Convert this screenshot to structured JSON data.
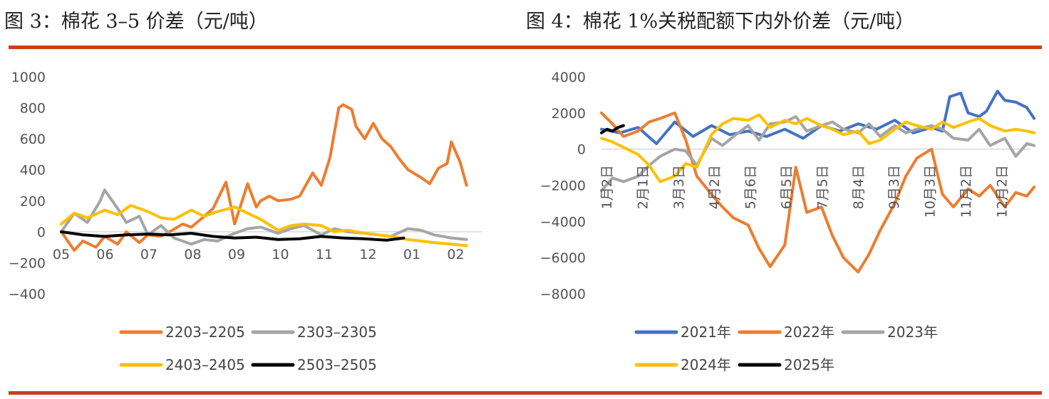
{
  "titles": {
    "chart3": "图 3：棉花 3–5 价差（元/吨）",
    "chart4": "图 4：棉花 1%关税配额下内外价差（元/吨）"
  },
  "chart_data": [
    {
      "type": "line",
      "title": "图 3：棉花 3–5 价差（元/吨）",
      "xlabel": "",
      "ylabel": "",
      "x_ticks": [
        "05",
        "06",
        "07",
        "08",
        "09",
        "10",
        "11",
        "12",
        "01",
        "02"
      ],
      "y_ticks": [
        "1000",
        "800",
        "600",
        "400",
        "200",
        "0",
        "−200",
        "−400"
      ],
      "ylim": [
        -400,
        1000
      ],
      "grid": false,
      "legend_position": "bottom",
      "series": [
        {
          "name": "2203–2205",
          "color": "#ed7d31",
          "x": [
            0,
            0.3,
            0.5,
            0.8,
            1.0,
            1.3,
            1.5,
            1.8,
            2.0,
            2.3,
            2.5,
            2.8,
            3.0,
            3.3,
            3.5,
            3.8,
            4.0,
            4.3,
            4.5,
            4.6,
            4.8,
            5.0,
            5.3,
            5.5,
            5.8,
            6.0,
            6.2,
            6.4,
            6.5,
            6.7,
            6.8,
            7.0,
            7.2,
            7.4,
            7.6,
            7.8,
            8.0,
            8.3,
            8.5,
            8.7,
            8.9,
            9.0,
            9.2,
            9.35
          ],
          "values": [
            0,
            -120,
            -60,
            -100,
            -30,
            -80,
            0,
            -70,
            -20,
            -30,
            0,
            50,
            30,
            100,
            150,
            320,
            50,
            310,
            160,
            200,
            230,
            200,
            210,
            230,
            380,
            300,
            480,
            800,
            820,
            790,
            680,
            600,
            700,
            600,
            550,
            470,
            400,
            350,
            310,
            410,
            440,
            580,
            450,
            300
          ]
        },
        {
          "name": "2303–2305",
          "color": "#a5a5a5",
          "x": [
            0,
            0.3,
            0.6,
            0.9,
            1.0,
            1.3,
            1.5,
            1.8,
            2.0,
            2.3,
            2.6,
            3.0,
            3.3,
            3.6,
            4.0,
            4.3,
            4.6,
            5.0,
            5.3,
            5.6,
            6.0,
            6.3,
            6.6,
            7.0,
            7.3,
            7.6,
            8.0,
            8.3,
            8.6,
            9.0,
            9.35
          ],
          "values": [
            0,
            120,
            60,
            200,
            270,
            150,
            60,
            100,
            -20,
            40,
            -40,
            -80,
            -50,
            -60,
            -10,
            20,
            30,
            -10,
            20,
            40,
            -20,
            20,
            0,
            -10,
            -20,
            -30,
            20,
            10,
            -20,
            -40,
            -50
          ]
        },
        {
          "name": "2403–2405",
          "color": "#ffc000",
          "x": [
            0,
            0.3,
            0.6,
            1.0,
            1.3,
            1.6,
            2.0,
            2.3,
            2.6,
            3.0,
            3.3,
            3.6,
            4.0,
            4.3,
            4.6,
            5.0,
            5.3,
            5.6,
            6.0,
            6.3,
            6.6,
            7.0,
            7.3,
            7.6,
            8.0,
            8.3,
            8.6,
            9.0,
            9.35
          ],
          "values": [
            50,
            120,
            90,
            140,
            110,
            170,
            130,
            90,
            80,
            140,
            100,
            130,
            160,
            120,
            80,
            10,
            40,
            50,
            40,
            0,
            10,
            -10,
            -20,
            -30,
            -50,
            -60,
            -70,
            -80,
            -90
          ]
        },
        {
          "name": "2503–2505",
          "color": "#000000",
          "x": [
            0,
            0.5,
            1.0,
            1.5,
            2.0,
            2.5,
            3.0,
            3.5,
            4.0,
            4.5,
            5.0,
            5.5,
            6.0,
            6.5,
            7.0,
            7.5,
            7.9
          ],
          "values": [
            0,
            -20,
            -30,
            -20,
            -15,
            -20,
            -10,
            -30,
            -40,
            -35,
            -50,
            -45,
            -30,
            -40,
            -45,
            -55,
            -40
          ]
        }
      ]
    },
    {
      "type": "line",
      "title": "图 4：棉花 1%关税配额下内外价差（元/吨）",
      "xlabel": "",
      "ylabel": "",
      "x_ticks": [
        "1月2日",
        "2月1日",
        "3月3日",
        "4月2日",
        "5月6日",
        "6月5日",
        "7月5日",
        "8月4日",
        "9月3日",
        "10月3日",
        "11月2日",
        "12月2日"
      ],
      "y_ticks": [
        "4000",
        "2000",
        "0",
        "−2000",
        "−4000",
        "−6000",
        "−8000"
      ],
      "ylim": [
        -8000,
        4000
      ],
      "grid": false,
      "legend_position": "bottom",
      "series": [
        {
          "name": "2021年",
          "color": "#4472c4",
          "x": [
            0,
            0.5,
            1.0,
            1.5,
            2.0,
            2.5,
            3.0,
            3.5,
            4.0,
            4.5,
            5.0,
            5.5,
            6.0,
            6.5,
            7.0,
            7.5,
            8.0,
            8.5,
            9.0,
            9.3,
            9.5,
            9.8,
            10.0,
            10.3,
            10.5,
            10.8,
            11.0,
            11.3,
            11.6,
            11.8
          ],
          "values": [
            1100,
            900,
            1200,
            300,
            1500,
            700,
            1300,
            800,
            1000,
            700,
            1100,
            600,
            1300,
            1000,
            1400,
            1100,
            1600,
            900,
            1200,
            1000,
            2900,
            3100,
            2000,
            1800,
            2100,
            3200,
            2700,
            2600,
            2300,
            1700
          ]
        },
        {
          "name": "2022年",
          "color": "#ed7d31",
          "x": [
            0,
            0.3,
            0.6,
            1.0,
            1.3,
            1.6,
            2.0,
            2.3,
            2.6,
            3.0,
            3.3,
            3.6,
            4.0,
            4.3,
            4.6,
            5.0,
            5.3,
            5.6,
            6.0,
            6.3,
            6.6,
            7.0,
            7.3,
            7.6,
            8.0,
            8.3,
            8.6,
            9.0,
            9.3,
            9.6,
            10.0,
            10.3,
            10.6,
            11.0,
            11.3,
            11.6,
            11.8
          ],
          "values": [
            2000,
            1400,
            700,
            1000,
            1500,
            1700,
            2000,
            500,
            -1500,
            -2500,
            -3200,
            -3800,
            -4200,
            -5500,
            -6500,
            -5300,
            -1000,
            -3500,
            -3200,
            -4800,
            -6000,
            -6800,
            -5800,
            -4500,
            -3000,
            -1500,
            -500,
            0,
            -2500,
            -3200,
            -2200,
            -2600,
            -2000,
            -3200,
            -2400,
            -2600,
            -2100
          ]
        },
        {
          "name": "2023年",
          "color": "#a5a5a5",
          "x": [
            0,
            0.3,
            0.6,
            1.0,
            1.3,
            1.6,
            2.0,
            2.3,
            2.6,
            3.0,
            3.3,
            3.6,
            4.0,
            4.3,
            4.6,
            5.0,
            5.3,
            5.6,
            6.0,
            6.3,
            6.6,
            7.0,
            7.3,
            7.6,
            8.0,
            8.3,
            8.6,
            9.0,
            9.3,
            9.6,
            10.0,
            10.3,
            10.6,
            11.0,
            11.3,
            11.6,
            11.8
          ],
          "values": [
            -2300,
            -1600,
            -1800,
            -1500,
            -900,
            -400,
            0,
            -100,
            -900,
            600,
            200,
            700,
            1300,
            500,
            1400,
            1500,
            1800,
            1000,
            1300,
            1500,
            1100,
            900,
            1400,
            700,
            1300,
            900,
            1100,
            1300,
            1100,
            600,
            500,
            1100,
            200,
            600,
            -400,
            300,
            200
          ]
        },
        {
          "name": "2024年",
          "color": "#ffc000",
          "x": [
            0,
            0.3,
            0.6,
            1.0,
            1.3,
            1.6,
            2.0,
            2.3,
            2.6,
            3.0,
            3.3,
            3.6,
            4.0,
            4.3,
            4.6,
            5.0,
            5.3,
            5.6,
            6.0,
            6.3,
            6.6,
            7.0,
            7.3,
            7.6,
            8.0,
            8.3,
            8.6,
            9.0,
            9.3,
            9.6,
            10.0,
            10.3,
            10.6,
            11.0,
            11.3,
            11.6,
            11.8
          ],
          "values": [
            600,
            400,
            100,
            -300,
            -900,
            -1800,
            -1500,
            -800,
            -1000,
            800,
            1400,
            1700,
            1600,
            1900,
            1200,
            1600,
            1400,
            1700,
            1300,
            1100,
            800,
            1000,
            300,
            500,
            1100,
            1500,
            1300,
            1100,
            1500,
            1200,
            1500,
            1700,
            1300,
            1000,
            1100,
            1000,
            900
          ]
        },
        {
          "name": "2025年",
          "color": "#000000",
          "x": [
            0,
            0.15,
            0.3,
            0.45,
            0.6
          ],
          "values": [
            900,
            1100,
            1000,
            1200,
            1300
          ]
        }
      ]
    }
  ]
}
